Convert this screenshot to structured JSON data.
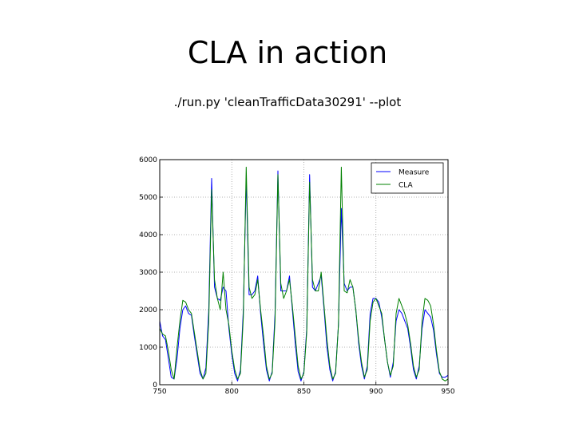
{
  "slide": {
    "title": "CLA in action",
    "subtitle": "./run.py 'cleanTrafficData30291' --plot"
  },
  "colors": {
    "measure": "#0000ff",
    "cla": "#008000",
    "grid": "#9a9a9a"
  },
  "chart_data": {
    "type": "line",
    "title": "",
    "xlabel": "",
    "ylabel": "",
    "xlim": [
      750,
      950
    ],
    "ylim": [
      0,
      6000
    ],
    "xticks": [
      "750",
      "800",
      "850",
      "900",
      "950"
    ],
    "yticks": [
      "0",
      "1000",
      "2000",
      "3000",
      "4000",
      "5000",
      "6000"
    ],
    "grid": true,
    "legend": "top-right",
    "series": [
      {
        "name": "Measure",
        "color": "#0000ff",
        "points": [
          [
            750,
            1700
          ],
          [
            752,
            1300
          ],
          [
            754,
            1200
          ],
          [
            756,
            700
          ],
          [
            758,
            200
          ],
          [
            760,
            150
          ],
          [
            762,
            700
          ],
          [
            764,
            1500
          ],
          [
            766,
            2000
          ],
          [
            768,
            2100
          ],
          [
            770,
            1900
          ],
          [
            772,
            1850
          ],
          [
            774,
            1300
          ],
          [
            776,
            800
          ],
          [
            778,
            300
          ],
          [
            780,
            150
          ],
          [
            782,
            450
          ],
          [
            784,
            2000
          ],
          [
            786,
            5500
          ],
          [
            788,
            2600
          ],
          [
            790,
            2300
          ],
          [
            792,
            2250
          ],
          [
            794,
            2600
          ],
          [
            796,
            2500
          ],
          [
            798,
            1500
          ],
          [
            800,
            800
          ],
          [
            802,
            300
          ],
          [
            804,
            100
          ],
          [
            806,
            400
          ],
          [
            808,
            2000
          ],
          [
            810,
            5500
          ],
          [
            812,
            2400
          ],
          [
            814,
            2400
          ],
          [
            816,
            2500
          ],
          [
            818,
            2900
          ],
          [
            820,
            1900
          ],
          [
            822,
            1100
          ],
          [
            824,
            400
          ],
          [
            826,
            100
          ],
          [
            828,
            350
          ],
          [
            830,
            1900
          ],
          [
            832,
            5700
          ],
          [
            834,
            2500
          ],
          [
            836,
            2500
          ],
          [
            838,
            2500
          ],
          [
            840,
            2900
          ],
          [
            842,
            2000
          ],
          [
            844,
            1100
          ],
          [
            846,
            350
          ],
          [
            848,
            100
          ],
          [
            850,
            350
          ],
          [
            852,
            1500
          ],
          [
            854,
            5600
          ],
          [
            856,
            2600
          ],
          [
            858,
            2500
          ],
          [
            860,
            2700
          ],
          [
            862,
            2900
          ],
          [
            864,
            2000
          ],
          [
            866,
            1000
          ],
          [
            868,
            400
          ],
          [
            870,
            100
          ],
          [
            872,
            350
          ],
          [
            874,
            1600
          ],
          [
            876,
            4700
          ],
          [
            878,
            2700
          ],
          [
            880,
            2500
          ],
          [
            882,
            2600
          ],
          [
            884,
            2600
          ],
          [
            886,
            2000
          ],
          [
            888,
            1100
          ],
          [
            890,
            500
          ],
          [
            892,
            150
          ],
          [
            894,
            500
          ],
          [
            896,
            1900
          ],
          [
            898,
            2300
          ],
          [
            900,
            2300
          ],
          [
            902,
            2200
          ],
          [
            904,
            1800
          ],
          [
            906,
            1200
          ],
          [
            908,
            600
          ],
          [
            910,
            200
          ],
          [
            912,
            600
          ],
          [
            914,
            1700
          ],
          [
            916,
            2000
          ],
          [
            918,
            1900
          ],
          [
            920,
            1700
          ],
          [
            922,
            1500
          ],
          [
            924,
            1000
          ],
          [
            926,
            400
          ],
          [
            928,
            150
          ],
          [
            930,
            500
          ],
          [
            932,
            1500
          ],
          [
            934,
            2000
          ],
          [
            936,
            1900
          ],
          [
            938,
            1800
          ],
          [
            940,
            1450
          ],
          [
            942,
            800
          ],
          [
            944,
            300
          ],
          [
            946,
            200
          ],
          [
            948,
            200
          ],
          [
            950,
            250
          ]
        ]
      },
      {
        "name": "CLA",
        "color": "#008000",
        "points": [
          [
            750,
            1500
          ],
          [
            752,
            1350
          ],
          [
            754,
            1300
          ],
          [
            756,
            900
          ],
          [
            758,
            400
          ],
          [
            760,
            150
          ],
          [
            762,
            1000
          ],
          [
            764,
            1700
          ],
          [
            766,
            2250
          ],
          [
            768,
            2200
          ],
          [
            770,
            2000
          ],
          [
            772,
            1900
          ],
          [
            774,
            1400
          ],
          [
            776,
            900
          ],
          [
            778,
            400
          ],
          [
            780,
            150
          ],
          [
            782,
            300
          ],
          [
            784,
            1700
          ],
          [
            786,
            5200
          ],
          [
            788,
            2800
          ],
          [
            790,
            2300
          ],
          [
            792,
            2000
          ],
          [
            794,
            3000
          ],
          [
            796,
            2000
          ],
          [
            798,
            1600
          ],
          [
            800,
            900
          ],
          [
            802,
            400
          ],
          [
            804,
            150
          ],
          [
            806,
            300
          ],
          [
            808,
            1800
          ],
          [
            810,
            5800
          ],
          [
            812,
            2600
          ],
          [
            814,
            2300
          ],
          [
            816,
            2400
          ],
          [
            818,
            2800
          ],
          [
            820,
            2000
          ],
          [
            822,
            1300
          ],
          [
            824,
            500
          ],
          [
            826,
            150
          ],
          [
            828,
            300
          ],
          [
            830,
            1700
          ],
          [
            832,
            5600
          ],
          [
            834,
            2700
          ],
          [
            836,
            2300
          ],
          [
            838,
            2500
          ],
          [
            840,
            2800
          ],
          [
            842,
            2100
          ],
          [
            844,
            1300
          ],
          [
            846,
            500
          ],
          [
            848,
            150
          ],
          [
            850,
            300
          ],
          [
            852,
            1400
          ],
          [
            854,
            5400
          ],
          [
            856,
            2800
          ],
          [
            858,
            2500
          ],
          [
            860,
            2500
          ],
          [
            862,
            3000
          ],
          [
            864,
            2100
          ],
          [
            866,
            1200
          ],
          [
            868,
            500
          ],
          [
            870,
            150
          ],
          [
            872,
            300
          ],
          [
            874,
            1600
          ],
          [
            876,
            5800
          ],
          [
            878,
            2500
          ],
          [
            880,
            2450
          ],
          [
            882,
            2800
          ],
          [
            884,
            2600
          ],
          [
            886,
            2000
          ],
          [
            888,
            1200
          ],
          [
            890,
            600
          ],
          [
            892,
            200
          ],
          [
            894,
            400
          ],
          [
            896,
            1700
          ],
          [
            898,
            2200
          ],
          [
            900,
            2300
          ],
          [
            902,
            2100
          ],
          [
            904,
            1900
          ],
          [
            906,
            1200
          ],
          [
            908,
            600
          ],
          [
            910,
            250
          ],
          [
            912,
            500
          ],
          [
            914,
            1900
          ],
          [
            916,
            2300
          ],
          [
            918,
            2100
          ],
          [
            920,
            1900
          ],
          [
            922,
            1600
          ],
          [
            924,
            1100
          ],
          [
            926,
            500
          ],
          [
            928,
            200
          ],
          [
            930,
            400
          ],
          [
            932,
            1700
          ],
          [
            934,
            2300
          ],
          [
            936,
            2250
          ],
          [
            938,
            2100
          ],
          [
            940,
            1600
          ],
          [
            942,
            900
          ],
          [
            944,
            350
          ],
          [
            946,
            150
          ],
          [
            948,
            100
          ],
          [
            950,
            150
          ]
        ]
      }
    ]
  }
}
